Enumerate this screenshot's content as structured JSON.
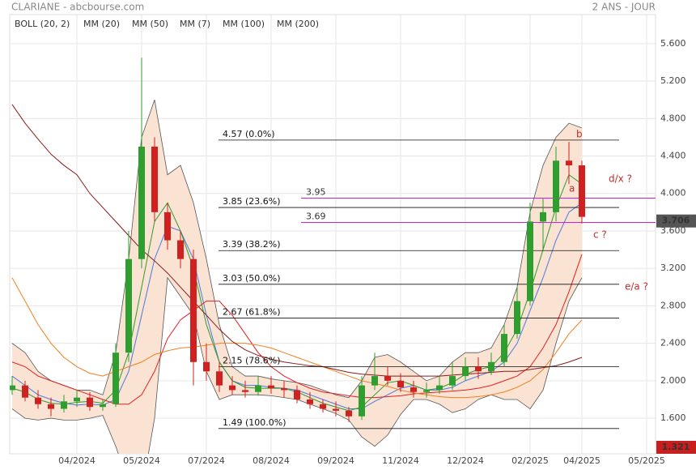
{
  "header": {
    "title": "CLARIANE - abcbourse.com",
    "period": "2 ANS - JOUR"
  },
  "chart_data": {
    "type": "candlestick",
    "categories": [
      null,
      null,
      null,
      null,
      null,
      "04/2024",
      null,
      null,
      null,
      null,
      "05/2024",
      null,
      null,
      null,
      null,
      "07/2024",
      null,
      null,
      null,
      null,
      "08/2024",
      null,
      null,
      null,
      null,
      "09/2024",
      null,
      null,
      null,
      null,
      "11/2024",
      null,
      null,
      null,
      null,
      "12/2024",
      null,
      null,
      null,
      null,
      "02/2025",
      null,
      null,
      null,
      "04/2025",
      null,
      null,
      null,
      null,
      "05/2025"
    ],
    "open": [
      1.9,
      1.95,
      1.82,
      1.75,
      1.7,
      1.78,
      1.82,
      1.72,
      1.75,
      2.3,
      3.3,
      4.5,
      3.8,
      3.5,
      3.3,
      2.2,
      2.1,
      1.95,
      1.9,
      1.88,
      1.95,
      1.92,
      1.9,
      1.8,
      1.75,
      1.7,
      1.68,
      1.62,
      1.95,
      2.05,
      2.0,
      1.93,
      1.88,
      1.9,
      1.95,
      2.05,
      2.15,
      2.1,
      2.2,
      2.5,
      2.85,
      3.7,
      3.8,
      4.35,
      4.3,
      null,
      null,
      null,
      null,
      null
    ],
    "high": [
      2.05,
      2.0,
      1.9,
      1.82,
      1.85,
      1.9,
      1.88,
      1.8,
      2.4,
      3.6,
      5.45,
      4.6,
      3.9,
      3.6,
      3.4,
      2.4,
      2.2,
      2.05,
      2.0,
      2.05,
      2.05,
      2.0,
      1.95,
      1.88,
      1.8,
      1.78,
      1.72,
      2.05,
      2.3,
      2.15,
      2.08,
      2.0,
      1.98,
      2.05,
      2.2,
      2.25,
      2.25,
      2.3,
      2.6,
      3.0,
      3.9,
      3.95,
      4.5,
      4.55,
      4.35,
      null,
      null,
      null,
      null,
      null
    ],
    "low": [
      1.85,
      1.78,
      1.7,
      1.62,
      1.66,
      1.72,
      1.68,
      1.68,
      1.72,
      2.2,
      3.2,
      3.7,
      3.4,
      3.2,
      1.95,
      2.0,
      1.88,
      1.85,
      1.82,
      1.84,
      1.86,
      1.82,
      1.76,
      1.7,
      1.66,
      1.62,
      1.56,
      1.58,
      1.9,
      1.95,
      1.88,
      1.82,
      1.82,
      1.86,
      1.9,
      2.0,
      2.02,
      2.06,
      2.15,
      2.45,
      2.8,
      3.4,
      3.7,
      4.1,
      3.68,
      null,
      null,
      null,
      null,
      null
    ],
    "close": [
      1.95,
      1.82,
      1.75,
      1.7,
      1.78,
      1.82,
      1.72,
      1.75,
      2.3,
      3.3,
      4.5,
      3.8,
      3.5,
      3.3,
      2.2,
      2.1,
      1.95,
      1.9,
      1.88,
      1.95,
      1.92,
      1.9,
      1.8,
      1.75,
      1.7,
      1.68,
      1.62,
      1.95,
      2.05,
      2.0,
      1.93,
      1.88,
      1.9,
      1.95,
      2.05,
      2.15,
      2.1,
      2.2,
      2.5,
      2.85,
      3.7,
      3.8,
      4.35,
      4.3,
      3.75,
      null,
      null,
      null,
      null,
      null
    ],
    "up_color": "#2e9e2e",
    "down_color": "#d02020",
    "bollinger": {
      "name": "BOLL (20, 2)",
      "color": "#555555",
      "fill": "#fbe3d3",
      "upper": [
        2.4,
        2.3,
        2.1,
        2.0,
        1.95,
        1.9,
        1.9,
        1.85,
        2.3,
        3.3,
        4.6,
        5.0,
        4.2,
        4.3,
        3.9,
        3.3,
        2.6,
        2.15,
        2.05,
        2.05,
        2.02,
        2.0,
        1.98,
        1.95,
        1.9,
        1.85,
        1.82,
        2.0,
        2.25,
        2.28,
        2.2,
        2.1,
        2.0,
        2.05,
        2.2,
        2.3,
        2.3,
        2.35,
        2.6,
        3.0,
        3.8,
        4.3,
        4.6,
        4.75,
        4.7,
        null,
        null,
        null,
        null,
        null
      ],
      "lower": [
        1.7,
        1.6,
        1.58,
        1.6,
        1.58,
        1.58,
        1.6,
        1.63,
        1.3,
        0.9,
        0.8,
        1.6,
        3.1,
        2.9,
        2.7,
        2.1,
        1.8,
        1.85,
        1.85,
        1.85,
        1.84,
        1.82,
        1.8,
        1.75,
        1.7,
        1.65,
        1.58,
        1.4,
        1.3,
        1.42,
        1.64,
        1.8,
        1.8,
        1.75,
        1.66,
        1.7,
        1.8,
        1.85,
        1.8,
        1.8,
        1.7,
        1.9,
        2.4,
        2.85,
        3.1,
        null,
        null,
        null,
        null,
        null
      ]
    },
    "series": [
      {
        "name": "MM (20)",
        "color": "#4a78e0",
        "values": [
          2.05,
          1.95,
          1.85,
          1.8,
          1.76,
          1.74,
          1.75,
          1.74,
          1.8,
          2.1,
          2.7,
          3.3,
          3.65,
          3.6,
          3.3,
          2.7,
          2.2,
          2.0,
          1.95,
          1.95,
          1.93,
          1.92,
          1.9,
          1.85,
          1.8,
          1.75,
          1.7,
          1.7,
          1.78,
          1.85,
          1.92,
          1.95,
          1.9,
          1.9,
          1.93,
          2.0,
          2.05,
          2.1,
          2.2,
          2.4,
          2.75,
          3.1,
          3.5,
          3.8,
          3.9,
          null,
          null,
          null,
          null,
          null
        ]
      },
      {
        "name": "MM (50)",
        "color": "#e02020",
        "values": [
          2.2,
          2.15,
          2.05,
          2.0,
          1.95,
          1.9,
          1.85,
          1.8,
          1.75,
          1.75,
          1.85,
          2.1,
          2.45,
          2.65,
          2.75,
          2.85,
          2.85,
          2.7,
          2.5,
          2.3,
          2.15,
          2.05,
          1.98,
          1.92,
          1.88,
          1.86,
          1.84,
          1.82,
          1.82,
          1.83,
          1.84,
          1.86,
          1.87,
          1.88,
          1.89,
          1.9,
          1.92,
          1.95,
          2.0,
          2.05,
          2.15,
          2.35,
          2.6,
          2.95,
          3.35,
          null,
          null,
          null,
          null,
          null
        ]
      },
      {
        "name": "MM (7)",
        "color": "#2a9a2a",
        "values": [
          1.92,
          1.88,
          1.8,
          1.76,
          1.75,
          1.77,
          1.78,
          1.76,
          1.9,
          2.3,
          3.0,
          3.7,
          3.9,
          3.6,
          3.2,
          2.6,
          2.2,
          2.0,
          1.93,
          1.92,
          1.92,
          1.92,
          1.88,
          1.82,
          1.76,
          1.72,
          1.68,
          1.72,
          1.85,
          1.98,
          2.0,
          1.95,
          1.9,
          1.92,
          1.98,
          2.07,
          2.12,
          2.15,
          2.3,
          2.55,
          2.95,
          3.4,
          3.85,
          4.2,
          4.1,
          null,
          null,
          null,
          null,
          null
        ]
      },
      {
        "name": "MM (100)",
        "color": "#f08020",
        "values": [
          3.1,
          2.85,
          2.6,
          2.4,
          2.25,
          2.15,
          2.08,
          2.05,
          2.1,
          2.15,
          2.2,
          2.28,
          2.32,
          2.35,
          2.36,
          2.38,
          2.4,
          2.4,
          2.4,
          2.38,
          2.35,
          2.3,
          2.25,
          2.2,
          2.15,
          2.1,
          2.05,
          2.0,
          1.97,
          1.94,
          1.9,
          1.87,
          1.85,
          1.83,
          1.82,
          1.82,
          1.83,
          1.85,
          1.88,
          1.93,
          2.0,
          2.12,
          2.3,
          2.5,
          2.65,
          null,
          null,
          null,
          null,
          null
        ]
      },
      {
        "name": "MM (200)",
        "color": "#8b1a1a",
        "values": [
          4.95,
          4.75,
          4.58,
          4.42,
          4.3,
          4.2,
          4.0,
          3.85,
          3.7,
          3.55,
          3.4,
          3.28,
          3.15,
          3.0,
          2.85,
          2.7,
          2.55,
          2.42,
          2.33,
          2.27,
          2.23,
          2.2,
          2.18,
          2.16,
          2.15,
          2.12,
          2.09,
          2.07,
          2.06,
          2.05,
          2.05,
          2.05,
          2.05,
          2.05,
          2.06,
          2.07,
          2.08,
          2.09,
          2.1,
          2.1,
          2.12,
          2.14,
          2.16,
          2.2,
          2.25,
          null,
          null,
          null,
          null,
          null
        ]
      }
    ],
    "ylim": [
      1.22,
      5.91
    ],
    "yticks": [
      {
        "value": 5.6,
        "label": "5.600"
      },
      {
        "value": 5.2,
        "label": "5.200"
      },
      {
        "value": 4.8,
        "label": "4.800"
      },
      {
        "value": 4.4,
        "label": "4.400"
      },
      {
        "value": 4.0,
        "label": "4.000"
      },
      {
        "value": 3.6,
        "label": "3.600"
      },
      {
        "value": 3.2,
        "label": "3.200"
      },
      {
        "value": 2.8,
        "label": "2.800"
      },
      {
        "value": 2.4,
        "label": "2.400"
      },
      {
        "value": 2.0,
        "label": "2.000"
      },
      {
        "value": 1.6,
        "label": "1.600"
      }
    ],
    "grid": true,
    "fib_levels": [
      {
        "value": 4.57,
        "label": "4.57  (0.0%)"
      },
      {
        "value": 3.85,
        "label": "3.85  (23.6%)"
      },
      {
        "value": 3.39,
        "label": "3.39  (38.2%)"
      },
      {
        "value": 3.03,
        "label": "3.03  (50.0%)"
      },
      {
        "value": 2.67,
        "label": "2.67  (61.8%)"
      },
      {
        "value": 2.15,
        "label": "2.15  (78.6%)"
      },
      {
        "value": 1.49,
        "label": "1.49  (100.0%)"
      }
    ],
    "marked_levels": {
      "color": "#d21fd2",
      "levels": [
        3.95,
        3.69
      ]
    },
    "last_price": {
      "value": 3.706,
      "label": "3.706"
    },
    "bottom_label": "1.321",
    "annotations": [
      "b",
      "a",
      "d/x ?",
      "c ?",
      "e/a ?"
    ]
  }
}
